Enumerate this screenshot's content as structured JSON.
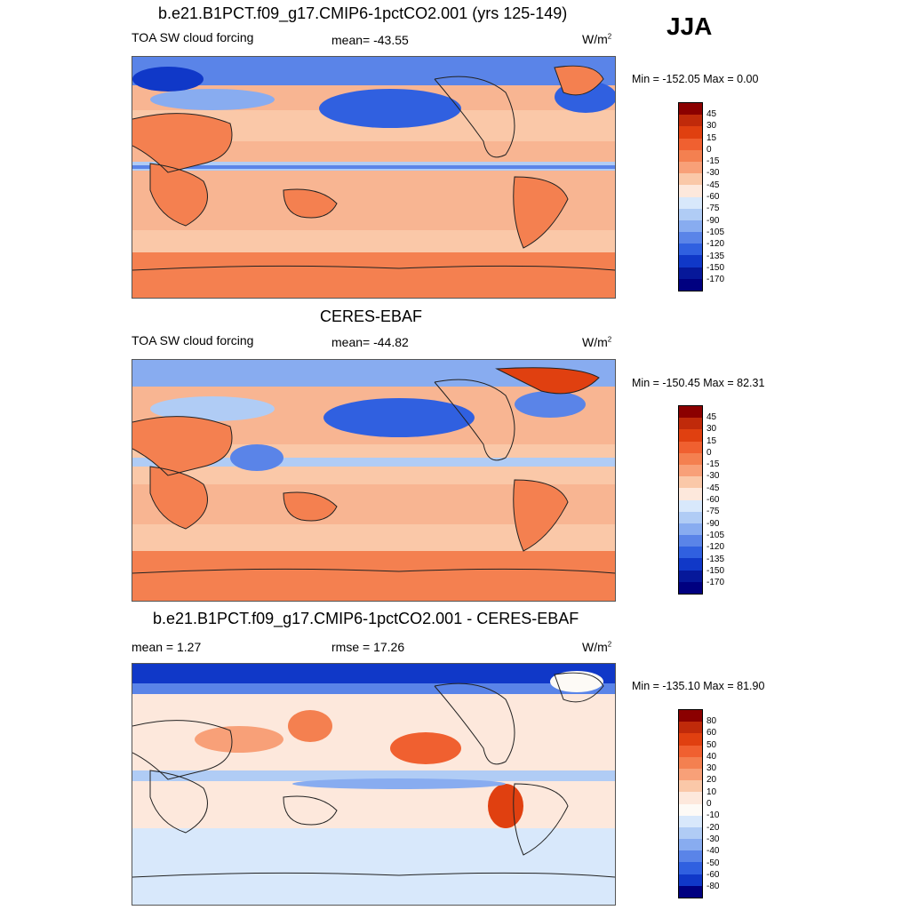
{
  "season": "JJA",
  "panels": [
    {
      "title": "b.e21.B1PCT.f09_g17.CMIP6-1pctCO2.001 (yrs 125-149)",
      "left_label": "TOA SW cloud forcing",
      "center_label": "mean= -43.55",
      "units": "W/m",
      "units_sup": "2",
      "minmax": "Min = -152.05 Max =    0.00",
      "colorbar": {
        "labels": [
          "45",
          "30",
          "15",
          "0",
          "-15",
          "-30",
          "-45",
          "-60",
          "-75",
          "-90",
          "-105",
          "-120",
          "-135",
          "-150",
          "-170"
        ],
        "colors": [
          "#8b0000",
          "#c02a0a",
          "#e04010",
          "#f06030",
          "#f48050",
          "#f8a078",
          "#fac8a8",
          "#fde8dc",
          "#d8e8fb",
          "#b0ccf5",
          "#88acf0",
          "#5a84e8",
          "#3060e0",
          "#1038c8",
          "#06189a",
          "#000080"
        ]
      }
    },
    {
      "title": "CERES-EBAF",
      "left_label": "TOA SW cloud forcing",
      "center_label": "mean= -44.82",
      "units": "W/m",
      "units_sup": "2",
      "minmax": "Min = -150.45 Max =  82.31",
      "colorbar": {
        "labels": [
          "45",
          "30",
          "15",
          "0",
          "-15",
          "-30",
          "-45",
          "-60",
          "-75",
          "-90",
          "-105",
          "-120",
          "-135",
          "-150",
          "-170"
        ],
        "colors": [
          "#8b0000",
          "#c02a0a",
          "#e04010",
          "#f06030",
          "#f48050",
          "#f8a078",
          "#fac8a8",
          "#fde8dc",
          "#d8e8fb",
          "#b0ccf5",
          "#88acf0",
          "#5a84e8",
          "#3060e0",
          "#1038c8",
          "#06189a",
          "#000080"
        ]
      }
    },
    {
      "title": "b.e21.B1PCT.f09_g17.CMIP6-1pctCO2.001 - CERES-EBAF",
      "left_label": "mean =   1.27",
      "center_label": "rmse =  17.26",
      "units": "W/m",
      "units_sup": "2",
      "minmax": "Min = -135.10 Max =  81.90",
      "colorbar": {
        "labels": [
          "80",
          "60",
          "50",
          "40",
          "30",
          "20",
          "10",
          "0",
          "-10",
          "-20",
          "-30",
          "-40",
          "-50",
          "-60",
          "-80"
        ],
        "colors": [
          "#8b0000",
          "#c02a0a",
          "#e04010",
          "#f06030",
          "#f48050",
          "#f8a078",
          "#fac8a8",
          "#fde8dc",
          "#fdfaf6",
          "#d8e8fb",
          "#b0ccf5",
          "#88acf0",
          "#5a84e8",
          "#3060e0",
          "#1038c8",
          "#000080"
        ]
      }
    }
  ]
}
